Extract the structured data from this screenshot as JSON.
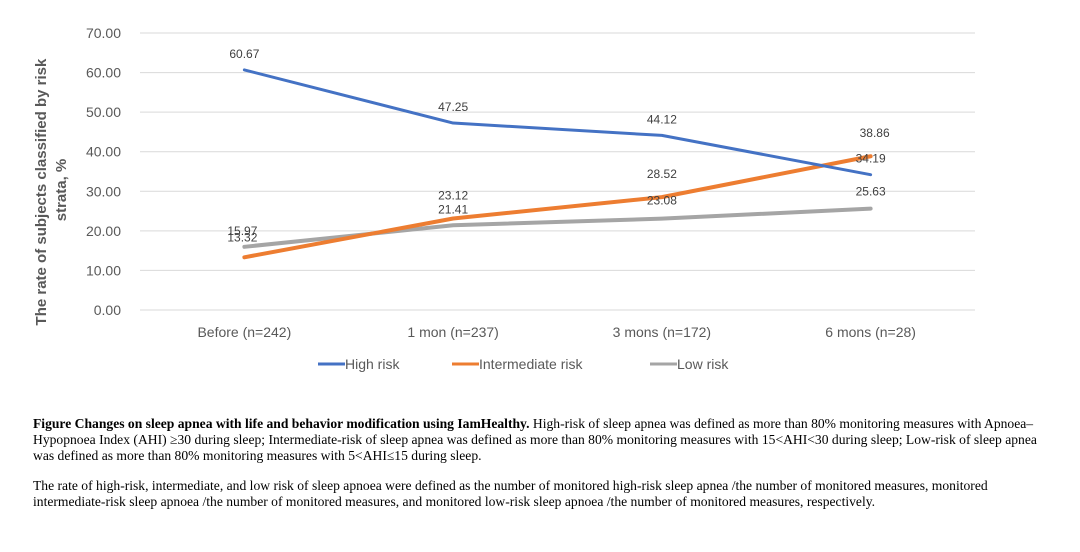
{
  "chart_data": {
    "type": "line",
    "title": "",
    "xlabel": "",
    "ylabel_lines": [
      "The rate of  subjects classified by risk",
      "strata, %"
    ],
    "categories": [
      "Before  (n=242)",
      "1 mon (n=237)",
      "3 mons (n=172)",
      "6 mons (n=28)"
    ],
    "ylim": [
      0,
      70
    ],
    "yticks": [
      "0.00",
      "10.00",
      "20.00",
      "30.00",
      "40.00",
      "50.00",
      "60.00",
      "70.00"
    ],
    "grid": true,
    "legend_position": "bottom",
    "series": [
      {
        "name": "High risk",
        "color": "#4472C4",
        "values": [
          60.67,
          47.25,
          44.12,
          34.19
        ],
        "labels": [
          "60.67",
          "47.25",
          "44.12",
          "34.19"
        ]
      },
      {
        "name": "Intermediate risk",
        "color": "#ED7D31",
        "values": [
          13.32,
          23.12,
          28.52,
          38.86
        ],
        "labels": [
          "13.32",
          "23.12",
          "28.52",
          "38.86"
        ]
      },
      {
        "name": "Low risk",
        "color": "#A5A5A5",
        "values": [
          15.97,
          21.41,
          23.08,
          25.63
        ],
        "labels": [
          "15.97",
          "21.41",
          "23.08",
          "25.63"
        ]
      }
    ]
  },
  "caption": {
    "fig_title": "Figure  Changes on sleep apnea with life and behavior modification using IamHealthy.",
    "para1": "High-risk of sleep apnea was defined as more than 80% monitoring measures with Apnoea–Hypopnoea Index (AHI) ≥30 during sleep; Intermediate-risk of sleep apnea was defined as more than 80% monitoring measures with 15<AHI<30 during sleep; Low-risk of sleep apnea was defined as more than 80% monitoring measures with 5<AHI≤15 during sleep.",
    "para2": "The rate of high-risk, intermediate, and low risk of sleep apnoea were defined as the number of  monitored high-risk sleep apnea /the number of monitored measures, monitored intermediate-risk sleep apnoea /the number of monitored measures, and monitored low-risk sleep apnoea /the number of monitored measures, respectively."
  }
}
